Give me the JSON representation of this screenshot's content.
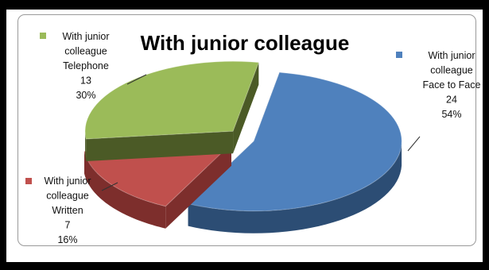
{
  "chart_data": {
    "type": "pie",
    "title": "With junior colleague",
    "slices": [
      {
        "name": "With junior colleague Face to Face",
        "value": 24,
        "percent": "54%",
        "color": "#4f81bd",
        "side_color": "#2c4d74",
        "label_lines": [
          "With junior",
          "colleague",
          "Face to Face",
          "24",
          "54%"
        ]
      },
      {
        "name": "With junior colleague Written",
        "value": 7,
        "percent": "16%",
        "color": "#c0504d",
        "side_color": "#7d2e2c",
        "label_lines": [
          "With junior",
          "colleague",
          "Written",
          "7",
          "16%"
        ]
      },
      {
        "name": "With junior colleague Telephone",
        "value": 13,
        "percent": "30%",
        "color": "#9bbb59",
        "side_color": "#4b5a26",
        "label_lines": [
          "With junior",
          "colleague",
          "Telephone",
          "13",
          "30%"
        ]
      }
    ],
    "legend": "none",
    "style": "3d-exploded"
  }
}
